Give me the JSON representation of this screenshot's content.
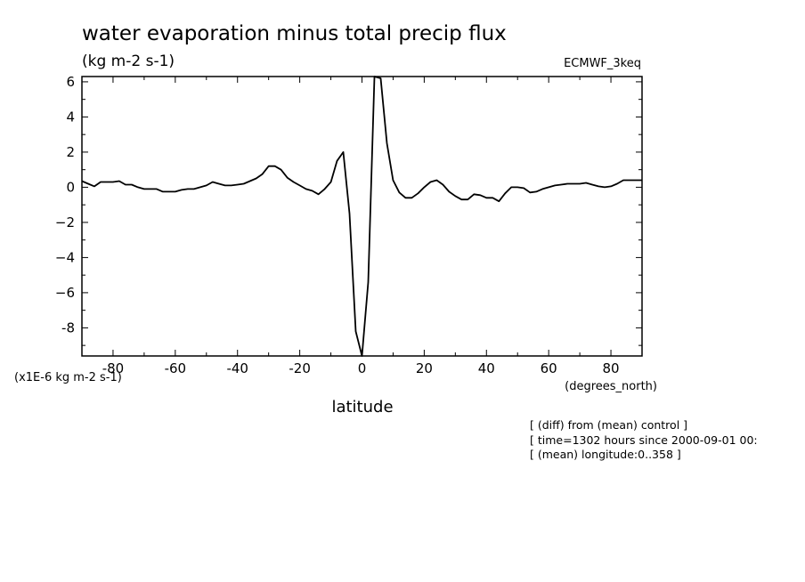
{
  "chart_data": {
    "type": "line",
    "title": "water evaporation minus total precip flux",
    "units": "(kg m-2 s-1)",
    "dataset": "ECMWF_3keq",
    "xlabel": "latitude",
    "xunits": "(degrees_north)",
    "yscale_label": "(x1E-6 kg m-2 s-1)",
    "xlim": [
      -90,
      90
    ],
    "ylim": [
      -9.6,
      6.3
    ],
    "xticks": [
      -80,
      -60,
      -40,
      -20,
      0,
      20,
      40,
      60,
      80
    ],
    "xtick_labels": [
      "-80",
      "-60",
      "-40",
      "-20",
      "0",
      "20",
      "40",
      "60",
      "80"
    ],
    "yticks": [
      -8,
      -6,
      -4,
      -2,
      0,
      2,
      4,
      6
    ],
    "ytick_labels": [
      "-8",
      "−6",
      "−4",
      "−2",
      "0",
      "2",
      "4",
      "6"
    ],
    "grid": false,
    "notes": [
      "[ (diff) from (mean) control ]",
      "[ time=1302 hours since 2000-09-01 00:",
      "[ (mean) longitude:0..358 ]"
    ],
    "series": [
      {
        "x": [
          -90,
          -88,
          -86,
          -84,
          -82,
          -80,
          -78,
          -76,
          -74,
          -72,
          -70,
          -68,
          -66,
          -64,
          -62,
          -60,
          -58,
          -56,
          -54,
          -52,
          -50,
          -48,
          -46,
          -44,
          -42,
          -40,
          -38,
          -36,
          -34,
          -32,
          -30,
          -28,
          -26,
          -24,
          -22,
          -20,
          -18,
          -16,
          -14,
          -12,
          -10,
          -8,
          -6,
          -4,
          -2,
          0,
          2,
          4,
          6,
          8,
          10,
          12,
          14,
          16,
          18,
          20,
          22,
          24,
          26,
          28,
          30,
          32,
          34,
          36,
          38,
          40,
          42,
          44,
          46,
          48,
          50,
          52,
          54,
          56,
          58,
          60,
          62,
          64,
          66,
          68,
          70,
          72,
          74,
          76,
          78,
          80,
          82,
          84,
          86,
          88,
          90
        ],
        "values": [
          0.35,
          0.2,
          0.05,
          0.3,
          0.3,
          0.3,
          0.35,
          0.15,
          0.15,
          0.0,
          -0.1,
          -0.1,
          -0.1,
          -0.25,
          -0.25,
          -0.25,
          -0.15,
          -0.1,
          -0.1,
          0.0,
          0.1,
          0.3,
          0.2,
          0.1,
          0.1,
          0.15,
          0.2,
          0.35,
          0.5,
          0.75,
          1.2,
          1.2,
          1.0,
          0.55,
          0.3,
          0.1,
          -0.1,
          -0.2,
          -0.4,
          -0.1,
          0.3,
          1.5,
          2.0,
          -1.5,
          -8.2,
          -9.6,
          -5.4,
          6.3,
          6.2,
          2.5,
          0.4,
          -0.3,
          -0.6,
          -0.6,
          -0.35,
          0.0,
          0.3,
          0.4,
          0.15,
          -0.25,
          -0.5,
          -0.7,
          -0.7,
          -0.4,
          -0.45,
          -0.6,
          -0.6,
          -0.8,
          -0.35,
          0.0,
          0.0,
          -0.05,
          -0.3,
          -0.25,
          -0.1,
          0.0,
          0.1,
          0.15,
          0.2,
          0.2,
          0.2,
          0.25,
          0.15,
          0.05,
          0.0,
          0.05,
          0.2,
          0.4,
          0.4,
          0.4,
          0.4
        ]
      }
    ]
  },
  "colors": {
    "line": "#000000",
    "axes": "#000000",
    "background": "#ffffff"
  }
}
